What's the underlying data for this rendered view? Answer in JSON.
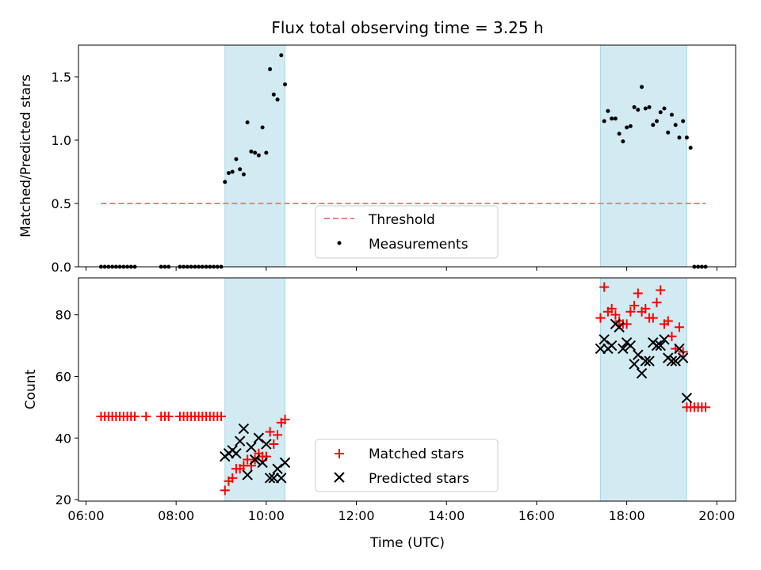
{
  "chart_data": [
    {
      "type": "scatter",
      "title": "Flux total observing time = 3.25 h",
      "ylabel": "Matched/Predicted stars",
      "xlabel": "",
      "ylim": [
        0,
        1.75
      ],
      "yticks": [
        "0.0",
        "0.5",
        "1.0",
        "1.5"
      ],
      "grid": false,
      "legend_position": "bottom-center",
      "shaded_regions": [
        [
          "09:05",
          "10:25"
        ],
        [
          "17:25",
          "19:20"
        ]
      ],
      "shade_color": "#add8e6",
      "threshold": {
        "name": "Threshold",
        "value": 0.5,
        "x_range": [
          "06:20",
          "19:45"
        ],
        "color": "#f08080"
      },
      "series": [
        {
          "name": "Measurements",
          "color": "#000000",
          "marker": "dot",
          "x": [
            "06:20",
            "06:25",
            "06:30",
            "06:35",
            "06:40",
            "06:45",
            "06:50",
            "06:55",
            "07:00",
            "07:05",
            "07:40",
            "07:45",
            "07:50",
            "08:05",
            "08:10",
            "08:15",
            "08:20",
            "08:25",
            "08:30",
            "08:35",
            "08:40",
            "08:45",
            "08:50",
            "08:55",
            "09:00",
            "09:05",
            "09:10",
            "09:15",
            "09:20",
            "09:25",
            "09:30",
            "09:35",
            "09:40",
            "09:45",
            "09:50",
            "09:55",
            "10:00",
            "10:05",
            "10:10",
            "10:15",
            "10:20",
            "10:25",
            "17:30",
            "17:35",
            "17:40",
            "17:45",
            "17:50",
            "17:55",
            "18:00",
            "18:05",
            "18:10",
            "18:15",
            "18:20",
            "18:25",
            "18:30",
            "18:35",
            "18:40",
            "18:45",
            "18:50",
            "18:55",
            "19:00",
            "19:05",
            "19:10",
            "19:15",
            "19:20",
            "19:25",
            "19:30",
            "19:35",
            "19:40",
            "19:45"
          ],
          "y": [
            0,
            0,
            0,
            0,
            0,
            0,
            0,
            0,
            0,
            0,
            0,
            0,
            0,
            0,
            0,
            0,
            0,
            0,
            0,
            0,
            0,
            0,
            0,
            0,
            0,
            0.67,
            0.74,
            0.75,
            0.85,
            0.77,
            0.73,
            1.14,
            0.91,
            0.9,
            0.88,
            1.1,
            0.9,
            1.56,
            1.36,
            1.32,
            1.67,
            1.44,
            1.15,
            1.23,
            1.17,
            1.17,
            1.05,
            0.99,
            1.1,
            1.11,
            1.26,
            1.24,
            1.42,
            1.25,
            1.26,
            1.12,
            1.15,
            1.22,
            1.25,
            1.06,
            1.2,
            1.12,
            1.02,
            1.15,
            1.02,
            0.94,
            0,
            0,
            0,
            0
          ]
        }
      ]
    },
    {
      "type": "scatter",
      "title": "",
      "ylabel": "Count",
      "xlabel": "Time (UTC)",
      "xlim": [
        "05:50",
        "20:25"
      ],
      "ylim": [
        19.5,
        92
      ],
      "xticks": [
        "06:00",
        "08:00",
        "10:00",
        "12:00",
        "14:00",
        "16:00",
        "18:00",
        "20:00"
      ],
      "yticks": [
        "20",
        "40",
        "60",
        "80"
      ],
      "grid": false,
      "legend_position": "bottom-center",
      "shaded_regions": [
        [
          "09:05",
          "10:25"
        ],
        [
          "17:25",
          "19:20"
        ]
      ],
      "series": [
        {
          "name": "Matched stars",
          "color": "#ff0000",
          "marker": "plus",
          "x": [
            "06:20",
            "06:25",
            "06:30",
            "06:35",
            "06:40",
            "06:45",
            "06:50",
            "06:55",
            "07:00",
            "07:05",
            "07:20",
            "07:40",
            "07:45",
            "07:50",
            "08:05",
            "08:10",
            "08:15",
            "08:20",
            "08:25",
            "08:30",
            "08:35",
            "08:40",
            "08:45",
            "08:50",
            "08:55",
            "09:00",
            "09:05",
            "09:10",
            "09:15",
            "09:20",
            "09:25",
            "09:30",
            "09:35",
            "09:40",
            "09:45",
            "09:50",
            "09:55",
            "10:00",
            "10:05",
            "10:10",
            "10:15",
            "10:20",
            "10:25",
            "17:25",
            "17:30",
            "17:35",
            "17:40",
            "17:45",
            "17:50",
            "17:55",
            "18:00",
            "18:05",
            "18:10",
            "18:15",
            "18:20",
            "18:25",
            "18:30",
            "18:35",
            "18:40",
            "18:45",
            "18:50",
            "18:55",
            "19:00",
            "19:05",
            "19:10",
            "19:15",
            "19:20",
            "19:25",
            "19:30",
            "19:35",
            "19:40",
            "19:45"
          ],
          "y": [
            47,
            47,
            47,
            47,
            47,
            47,
            47,
            47,
            47,
            47,
            47,
            47,
            47,
            47,
            47,
            47,
            47,
            47,
            47,
            47,
            47,
            47,
            47,
            47,
            47,
            47,
            23,
            26,
            27,
            30,
            30,
            31,
            33,
            31,
            33,
            35,
            34,
            34,
            42,
            38,
            41,
            45,
            46,
            79,
            89,
            81,
            82,
            80,
            78,
            77,
            77,
            81,
            83,
            87,
            81,
            82,
            79,
            79,
            84,
            88,
            77,
            78,
            73,
            69,
            76,
            68,
            50,
            50,
            50,
            50,
            50,
            50
          ]
        },
        {
          "name": "Predicted stars",
          "color": "#000000",
          "marker": "x",
          "x": [
            "09:05",
            "09:10",
            "09:15",
            "09:20",
            "09:25",
            "09:30",
            "09:35",
            "09:40",
            "09:45",
            "09:50",
            "09:55",
            "10:00",
            "10:05",
            "10:10",
            "10:15",
            "10:20",
            "10:25",
            "17:25",
            "17:30",
            "17:35",
            "17:40",
            "17:45",
            "17:50",
            "17:55",
            "18:00",
            "18:05",
            "18:10",
            "18:15",
            "18:20",
            "18:25",
            "18:30",
            "18:35",
            "18:40",
            "18:45",
            "18:50",
            "18:55",
            "19:00",
            "19:05",
            "19:10",
            "19:15",
            "19:20"
          ],
          "y": [
            34,
            35,
            36,
            35,
            39,
            43,
            28,
            37,
            33,
            40,
            32,
            38,
            27,
            27,
            30,
            27,
            32,
            69,
            72,
            69,
            70,
            77,
            76,
            69,
            71,
            70,
            64,
            67,
            61,
            65,
            65,
            71,
            70,
            70,
            72,
            66,
            65,
            65,
            69,
            66,
            53
          ]
        }
      ]
    }
  ]
}
